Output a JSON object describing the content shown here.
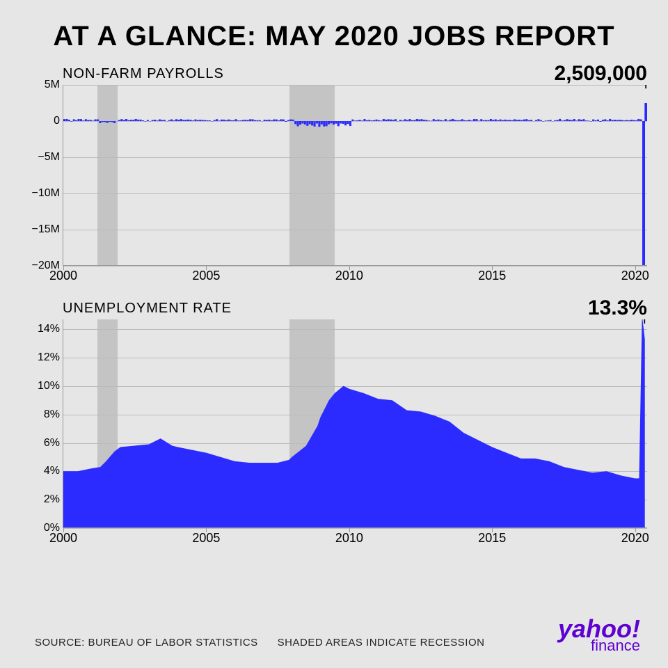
{
  "title": "AT A GLANCE: MAY 2020 JOBS REPORT",
  "footer_source": "SOURCE: BUREAU OF LABOR STATISTICS",
  "footer_note": "SHADED AREAS INDICATE RECESSION",
  "logo_main": "yahoo!",
  "logo_sub": "finance",
  "time_axis": {
    "start_year": 2000,
    "end_year": 2020.42,
    "ticks": [
      2000,
      2005,
      2010,
      2015,
      2020
    ],
    "tick_labels": [
      "2000",
      "2005",
      "2010",
      "2015",
      "2020"
    ]
  },
  "recessions": [
    {
      "start": 2001.2,
      "end": 2001.9
    },
    {
      "start": 2007.9,
      "end": 2009.5
    }
  ],
  "colors": {
    "bar": "#2b2bff",
    "area": "#2b2bff",
    "spike": "#2b2bff",
    "grid": "#bbbbbb",
    "recession": "#c4c4c4",
    "logo": "#5f01d1",
    "bg": "#e6e6e6"
  },
  "chart1": {
    "label": "NON-FARM PAYROLLS",
    "callout": "2,509,000",
    "ylim": [
      -20,
      5
    ],
    "y_ticks": [
      5,
      0,
      -5,
      -10,
      -15,
      -20
    ],
    "y_tick_labels": [
      "5M",
      "0",
      "−5M",
      "−10M",
      "−15M",
      "−20M"
    ],
    "final_bars": [
      {
        "year": 2020.25,
        "value": -20.5
      },
      {
        "year": 2020.33,
        "value": 2.5
      }
    ],
    "typical_range": [
      -0.8,
      0.4
    ],
    "recession_2008_min": -0.8
  },
  "chart2": {
    "label": "UNEMPLOYMENT RATE",
    "callout": "13.3%",
    "ylim": [
      0,
      14.7
    ],
    "y_ticks": [
      14,
      12,
      10,
      8,
      6,
      4,
      2,
      0
    ],
    "y_tick_labels": [
      "14%",
      "12%",
      "10%",
      "8%",
      "6%",
      "4%",
      "2%",
      "0%"
    ],
    "series": [
      [
        2000.0,
        4.0
      ],
      [
        2000.5,
        4.0
      ],
      [
        2001.0,
        4.2
      ],
      [
        2001.3,
        4.3
      ],
      [
        2001.5,
        4.7
      ],
      [
        2001.8,
        5.4
      ],
      [
        2002.0,
        5.7
      ],
      [
        2002.5,
        5.8
      ],
      [
        2003.0,
        5.9
      ],
      [
        2003.4,
        6.3
      ],
      [
        2003.8,
        5.8
      ],
      [
        2004.0,
        5.7
      ],
      [
        2004.5,
        5.5
      ],
      [
        2005.0,
        5.3
      ],
      [
        2005.5,
        5.0
      ],
      [
        2006.0,
        4.7
      ],
      [
        2006.5,
        4.6
      ],
      [
        2007.0,
        4.6
      ],
      [
        2007.5,
        4.6
      ],
      [
        2007.9,
        4.8
      ],
      [
        2008.0,
        5.0
      ],
      [
        2008.5,
        5.8
      ],
      [
        2008.9,
        7.2
      ],
      [
        2009.0,
        7.8
      ],
      [
        2009.3,
        9.0
      ],
      [
        2009.5,
        9.5
      ],
      [
        2009.8,
        10.0
      ],
      [
        2010.0,
        9.8
      ],
      [
        2010.5,
        9.5
      ],
      [
        2011.0,
        9.1
      ],
      [
        2011.5,
        9.0
      ],
      [
        2012.0,
        8.3
      ],
      [
        2012.5,
        8.2
      ],
      [
        2013.0,
        7.9
      ],
      [
        2013.5,
        7.5
      ],
      [
        2014.0,
        6.7
      ],
      [
        2014.5,
        6.2
      ],
      [
        2015.0,
        5.7
      ],
      [
        2015.5,
        5.3
      ],
      [
        2016.0,
        4.9
      ],
      [
        2016.5,
        4.9
      ],
      [
        2017.0,
        4.7
      ],
      [
        2017.5,
        4.3
      ],
      [
        2018.0,
        4.1
      ],
      [
        2018.5,
        3.9
      ],
      [
        2019.0,
        4.0
      ],
      [
        2019.5,
        3.7
      ],
      [
        2020.0,
        3.5
      ],
      [
        2020.15,
        3.5
      ],
      [
        2020.25,
        14.7
      ],
      [
        2020.33,
        13.3
      ]
    ]
  }
}
